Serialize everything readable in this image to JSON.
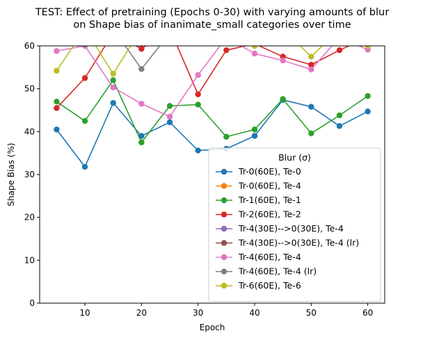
{
  "chart_data": {
    "type": "line",
    "title": "TEST: Effect of pretraining (Epochs 0-30) with varying amounts of blur\non Shape bias of inanimate_small categories over time",
    "xlabel": "Epoch",
    "ylabel": "Shape Bias (%)",
    "xlim": [
      2,
      63
    ],
    "ylim": [
      0,
      60
    ],
    "xticks": [
      10,
      20,
      30,
      40,
      50,
      60
    ],
    "yticks": [
      0,
      10,
      20,
      30,
      40,
      50,
      60
    ],
    "grid": false,
    "legend": {
      "title": "Blur (σ)",
      "placement": "lower-right"
    },
    "series": [
      {
        "name": "Tr-0(60E), Te-0",
        "color": "#1f77b4",
        "x": [
          5,
          10,
          15,
          20,
          25,
          30,
          35,
          40,
          45,
          50,
          55,
          60
        ],
        "y": [
          40.5,
          31.8,
          46.7,
          39.0,
          42.2,
          35.6,
          36.0,
          39.0,
          47.4,
          45.8,
          41.3,
          44.7
        ]
      },
      {
        "name": "Tr-0(60E), Te-4",
        "color": "#ff7f0e",
        "x": [],
        "y": []
      },
      {
        "name": "Tr-1(60E), Te-1",
        "color": "#2ca02c",
        "x": [
          5,
          10,
          15,
          20,
          25,
          30,
          35,
          40,
          45,
          50,
          55,
          60
        ],
        "y": [
          47.0,
          42.5,
          52.0,
          37.5,
          46.0,
          46.3,
          38.8,
          40.5,
          47.6,
          39.6,
          43.8,
          48.3
        ]
      },
      {
        "name": "Tr-2(60E), Te-2",
        "color": "#d62728",
        "x": [
          5,
          10,
          15,
          20,
          25,
          30,
          35,
          40,
          45,
          50,
          55,
          60
        ],
        "y": [
          45.5,
          52.5,
          63.0,
          59.3,
          64.0,
          48.7,
          59.0,
          60.5,
          57.5,
          55.6,
          59.0,
          62.0
        ]
      },
      {
        "name": "Tr-4(30E)-->0(30E), Te-4",
        "color": "#9467bd",
        "x": [],
        "y": []
      },
      {
        "name": "Tr-4(30E)-->0(30E), Te-4 (lr)",
        "color": "#8c564b",
        "x": [],
        "y": []
      },
      {
        "name": "Tr-4(60E), Te-4",
        "color": "#e377c2",
        "x": [
          5,
          10,
          15,
          20,
          25,
          30,
          35,
          40,
          45,
          50,
          55,
          60
        ],
        "y": [
          58.8,
          60.0,
          50.3,
          46.5,
          43.5,
          53.2,
          62.0,
          58.2,
          56.6,
          54.5,
          62.0,
          59.1
        ]
      },
      {
        "name": "Tr-4(60E), Te-4 (lr)",
        "color": "#7f7f7f",
        "x": [
          5,
          10,
          15,
          20,
          25,
          30,
          35,
          40,
          45,
          50,
          55,
          60
        ],
        "y": [
          63.0,
          60.3,
          64.0,
          54.6,
          63.0,
          64.0,
          63.0,
          64.0,
          64.0,
          64.0,
          64.0,
          64.0
        ]
      },
      {
        "name": "Tr-6(60E), Te-6",
        "color": "#bcbd22",
        "x": [
          5,
          10,
          15,
          20,
          25,
          30,
          35,
          40,
          45,
          50,
          55,
          60
        ],
        "y": [
          54.2,
          64.0,
          53.5,
          64.0,
          64.0,
          64.0,
          64.0,
          60.0,
          64.0,
          57.5,
          64.0,
          60.0
        ]
      }
    ]
  }
}
